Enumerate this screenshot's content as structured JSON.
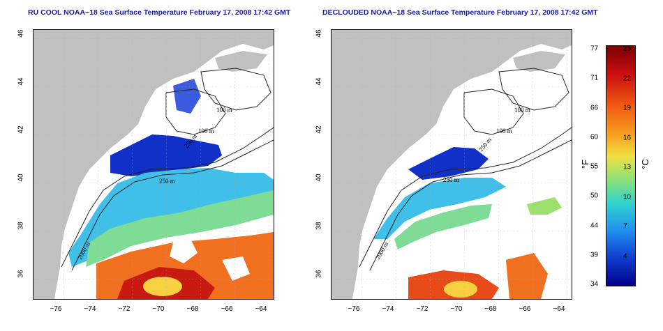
{
  "panels": [
    {
      "title": "RU COOL NOAA−18 Sea Surface Temperature February 17, 2008 17:42 GMT",
      "contour_labels": [
        "100 m",
        "100 m",
        "250 m",
        "250 m",
        "2000 m"
      ]
    },
    {
      "title": "DECLOUDED NOAA−18 Sea Surface Temperature February 17, 2008 17:42 GMT",
      "contour_labels": [
        "100 m",
        "100 m",
        "250 m",
        "250 m",
        "2000 m"
      ]
    }
  ],
  "x_ticks": [
    "−76",
    "−74",
    "−72",
    "−70",
    "−68",
    "−66",
    "−64"
  ],
  "y_ticks": [
    "36",
    "38",
    "40",
    "42",
    "44",
    "46"
  ],
  "colorbar": {
    "unit_f": "°F",
    "unit_c": "°C",
    "f_ticks": [
      "77",
      "71",
      "66",
      "60",
      "55",
      "50",
      "44",
      "39",
      "34"
    ],
    "c_ticks": [
      "25",
      "22",
      "19",
      "16",
      "13",
      "10",
      "7",
      "4"
    ],
    "colors": [
      "#7a0000",
      "#cc1010",
      "#f05a10",
      "#f7a020",
      "#f0e040",
      "#80e080",
      "#30d0d0",
      "#2090f0",
      "#1040d0",
      "#00008c"
    ]
  },
  "colors": {
    "land": "#c0c0c0",
    "ocean": "#ffffff",
    "title": "#1a1a9c"
  }
}
